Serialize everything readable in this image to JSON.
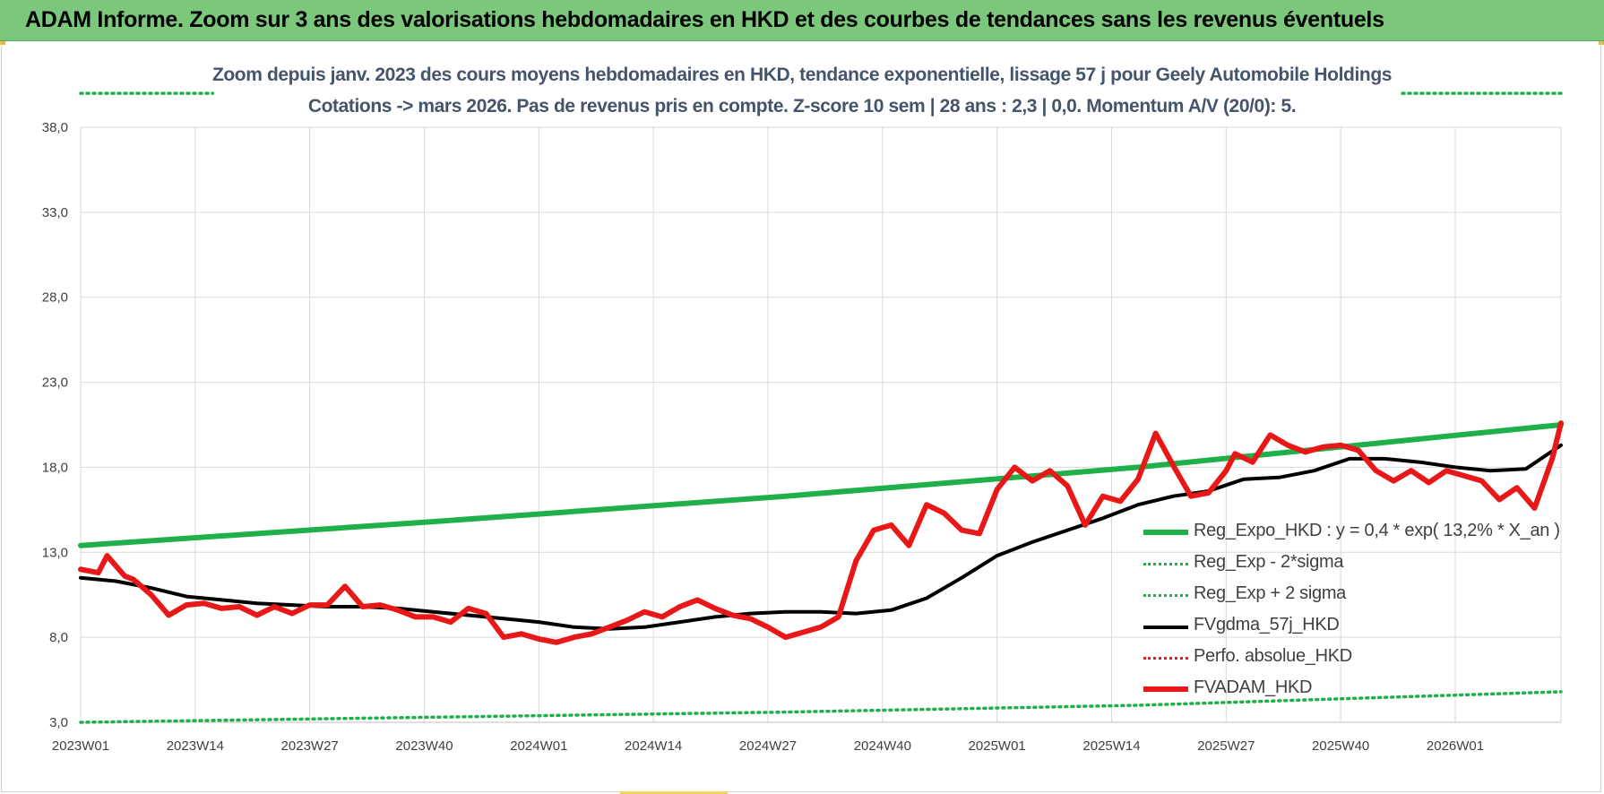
{
  "banner": {
    "title": "ADAM Informe. Zoom sur 3 ans des valorisations hebdomadaires en HKD et des courbes de tendances sans les revenus éventuels",
    "color": "#7bc77b"
  },
  "chart_data": {
    "type": "line",
    "title_line1": "Zoom depuis janv. 2023 des cours moyens hebdomadaires en HKD, tendance exponentielle, lissage 57 j pour Geely Automobile Holdings",
    "title_line2": "Cotations -> mars 2026. Pas de revenus pris en compte. Z-score 10 sem | 28 ans : 2,3 | 0,0. Momentum A/V (20/0): 5.",
    "x_ticks": [
      "2023W01",
      "2023W14",
      "2023W27",
      "2023W40",
      "2024W01",
      "2024W14",
      "2024W27",
      "2024W40",
      "2025W01",
      "2025W14",
      "2025W27",
      "2025W40",
      "2026W01"
    ],
    "x_range_weeks": [
      0,
      168
    ],
    "y_ticks": [
      "3,0",
      "8,0",
      "13,0",
      "18,0",
      "23,0",
      "28,0",
      "33,0",
      "38,0"
    ],
    "ylim": [
      3,
      38
    ],
    "grid": true,
    "legend_position": "bottom-right",
    "series": [
      {
        "name": "Reg_Expo_HKD : y = 0,4 * exp( 13,2% *  X_an )",
        "style": "solid-thick",
        "color": "#1fb04a",
        "x": [
          0,
          40,
          80,
          120,
          168
        ],
        "values": [
          13.4,
          14.8,
          16.3,
          18.0,
          20.5
        ]
      },
      {
        "name": "Reg_Exp - 2*sigma",
        "style": "dotted",
        "color": "#1fb04a",
        "x": [
          0,
          40,
          80,
          120,
          168
        ],
        "values": [
          3.0,
          3.3,
          3.6,
          4.0,
          4.8
        ]
      },
      {
        "name": "Reg_Exp + 2 sigma",
        "style": "dotted",
        "color": "#1fb04a",
        "x": [
          0,
          15,
          150,
          168
        ],
        "values": [
          40.0,
          40.0,
          40.0,
          40.0
        ],
        "gap_between_x": [
          15,
          150
        ]
      },
      {
        "name": "FVgdma_57j_HKD",
        "style": "solid",
        "color": "#000000",
        "x": [
          0,
          4,
          8,
          12,
          16,
          20,
          24,
          28,
          32,
          36,
          40,
          44,
          48,
          52,
          56,
          60,
          64,
          68,
          72,
          76,
          80,
          84,
          88,
          92,
          96,
          100,
          104,
          108,
          112,
          116,
          120,
          124,
          128,
          132,
          136,
          140,
          144,
          148,
          152,
          156,
          160,
          164,
          168
        ],
        "values": [
          11.5,
          11.3,
          10.9,
          10.4,
          10.2,
          10.0,
          9.9,
          9.8,
          9.8,
          9.7,
          9.5,
          9.3,
          9.1,
          8.9,
          8.6,
          8.5,
          8.6,
          8.9,
          9.2,
          9.4,
          9.5,
          9.5,
          9.4,
          9.6,
          10.3,
          11.5,
          12.8,
          13.6,
          14.3,
          15.0,
          15.8,
          16.3,
          16.6,
          17.3,
          17.4,
          17.8,
          18.5,
          18.5,
          18.3,
          18.0,
          17.8,
          17.9,
          19.3
        ]
      },
      {
        "name": "Perfo. absolue_HKD",
        "style": "dotted",
        "color": "#e02020",
        "x": [],
        "values": []
      },
      {
        "name": "FVADAM_HKD",
        "style": "solid-thick",
        "color": "#e81818",
        "x": [
          0,
          2,
          3,
          5,
          6,
          8,
          10,
          12,
          14,
          16,
          18,
          20,
          22,
          24,
          26,
          28,
          30,
          32,
          34,
          36,
          38,
          40,
          42,
          44,
          46,
          48,
          50,
          52,
          54,
          56,
          58,
          60,
          62,
          64,
          66,
          68,
          70,
          72,
          74,
          76,
          78,
          80,
          82,
          84,
          86,
          88,
          90,
          92,
          94,
          96,
          98,
          100,
          102,
          104,
          106,
          108,
          110,
          112,
          114,
          116,
          118,
          120,
          122,
          124,
          126,
          128,
          130,
          131,
          133,
          135,
          137,
          139,
          141,
          143,
          145,
          147,
          149,
          151,
          153,
          155,
          157,
          159,
          161,
          163,
          165,
          167,
          168
        ],
        "values": [
          12.0,
          11.8,
          12.8,
          11.6,
          11.4,
          10.5,
          9.3,
          9.9,
          10.0,
          9.7,
          9.8,
          9.3,
          9.8,
          9.4,
          9.9,
          9.9,
          11.0,
          9.8,
          9.9,
          9.6,
          9.2,
          9.2,
          8.9,
          9.7,
          9.4,
          8.0,
          8.2,
          7.9,
          7.7,
          8.0,
          8.2,
          8.6,
          9.0,
          9.5,
          9.2,
          9.8,
          10.2,
          9.7,
          9.3,
          9.1,
          8.6,
          8.0,
          8.3,
          8.6,
          9.2,
          12.5,
          14.3,
          14.6,
          13.4,
          15.8,
          15.3,
          14.3,
          14.1,
          16.7,
          18.0,
          17.2,
          17.8,
          16.9,
          14.6,
          16.3,
          16.0,
          17.3,
          20.0,
          18.1,
          16.3,
          16.5,
          17.8,
          18.8,
          18.3,
          19.9,
          19.3,
          18.9,
          19.2,
          19.3,
          19.0,
          17.8,
          17.2,
          17.8,
          17.1,
          17.8,
          17.5,
          17.2,
          16.1,
          16.8,
          15.6,
          18.5,
          20.6
        ]
      }
    ]
  }
}
